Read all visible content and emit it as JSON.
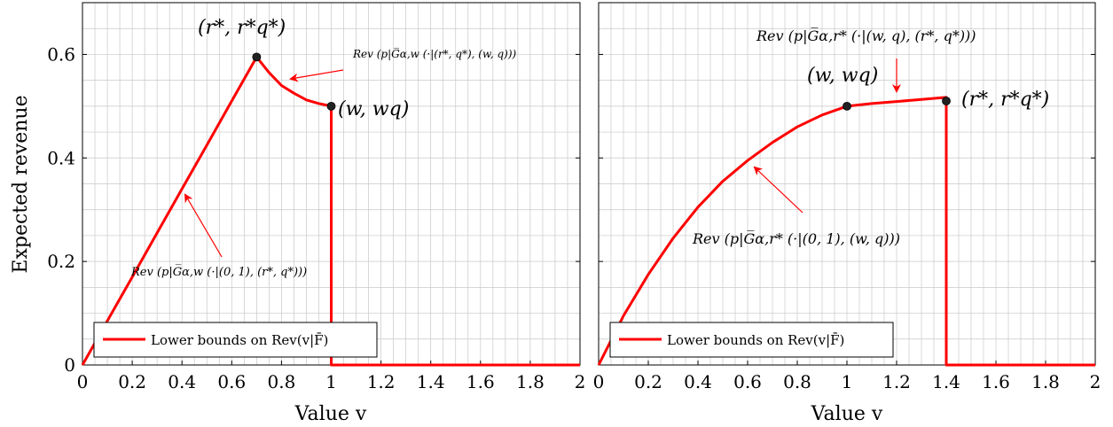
{
  "chart_data": [
    {
      "type": "line",
      "xlabel": "Value v",
      "ylabel": "Expected revenue",
      "xlim": [
        0,
        2
      ],
      "ylim": [
        0,
        0.7
      ],
      "x_ticks": [
        "0",
        "0.2",
        "0.4",
        "0.6",
        "0.8",
        "1",
        "1.2",
        "1.4",
        "1.6",
        "1.8",
        "2"
      ],
      "y_ticks": [
        "0",
        "0.2",
        "0.4",
        "0.6"
      ],
      "grid": true,
      "legend_position": "bottom-left",
      "color": "#ff0000",
      "series": [
        {
          "name": "Lower bounds on Rev(v|F̄)",
          "points": [
            [
              0,
              0
            ],
            [
              0.1,
              0.085
            ],
            [
              0.2,
              0.17
            ],
            [
              0.3,
              0.255
            ],
            [
              0.4,
              0.34
            ],
            [
              0.5,
              0.425
            ],
            [
              0.6,
              0.51
            ],
            [
              0.7,
              0.595
            ],
            [
              0.75,
              0.565
            ],
            [
              0.8,
              0.54
            ],
            [
              0.85,
              0.525
            ],
            [
              0.9,
              0.512
            ],
            [
              0.95,
              0.505
            ],
            [
              1.0,
              0.5
            ],
            [
              1.0,
              0
            ],
            [
              2.0,
              0
            ]
          ]
        }
      ],
      "points": [
        {
          "x": 0.7,
          "y": 0.595,
          "label": "(r*, r*q*)"
        },
        {
          "x": 1.0,
          "y": 0.5,
          "label": "(w, wq)"
        }
      ],
      "annotations": [
        {
          "text": "Rev (p|G̅α,w (·|(r*, q*), (w, q)))"
        },
        {
          "text": "Rev (p|G̅α,w (·|(0, 1), (r*, q*)))"
        }
      ]
    },
    {
      "type": "line",
      "xlabel": "Value v",
      "ylabel": "",
      "xlim": [
        0,
        2
      ],
      "ylim": [
        0,
        0.7
      ],
      "x_ticks": [
        "0",
        "0.2",
        "0.4",
        "0.6",
        "0.8",
        "1",
        "1.2",
        "1.4",
        "1.6",
        "1.8",
        "2"
      ],
      "y_ticks": [
        "0",
        "0.2",
        "0.4",
        "0.6"
      ],
      "grid": true,
      "legend_position": "bottom-left",
      "color": "#ff0000",
      "series": [
        {
          "name": "Lower bounds on Rev(v|F̄)",
          "points": [
            [
              0,
              0
            ],
            [
              0.1,
              0.095
            ],
            [
              0.2,
              0.175
            ],
            [
              0.3,
              0.245
            ],
            [
              0.4,
              0.305
            ],
            [
              0.5,
              0.355
            ],
            [
              0.6,
              0.395
            ],
            [
              0.7,
              0.43
            ],
            [
              0.8,
              0.46
            ],
            [
              0.9,
              0.483
            ],
            [
              1.0,
              0.5
            ],
            [
              1.1,
              0.505
            ],
            [
              1.2,
              0.509
            ],
            [
              1.3,
              0.513
            ],
            [
              1.4,
              0.517
            ],
            [
              1.4,
              0
            ],
            [
              2.0,
              0
            ]
          ]
        }
      ],
      "points": [
        {
          "x": 1.0,
          "y": 0.5,
          "label": "(w, wq)"
        },
        {
          "x": 1.4,
          "y": 0.51,
          "label": "(r*, r*q*)"
        }
      ],
      "annotations": [
        {
          "text": "Rev (p|G̅α,r* (·|(w, q), (r*, q*)))"
        },
        {
          "text": "Rev (p|G̅α,r* (·|(0, 1), (w, q)))"
        }
      ]
    }
  ]
}
